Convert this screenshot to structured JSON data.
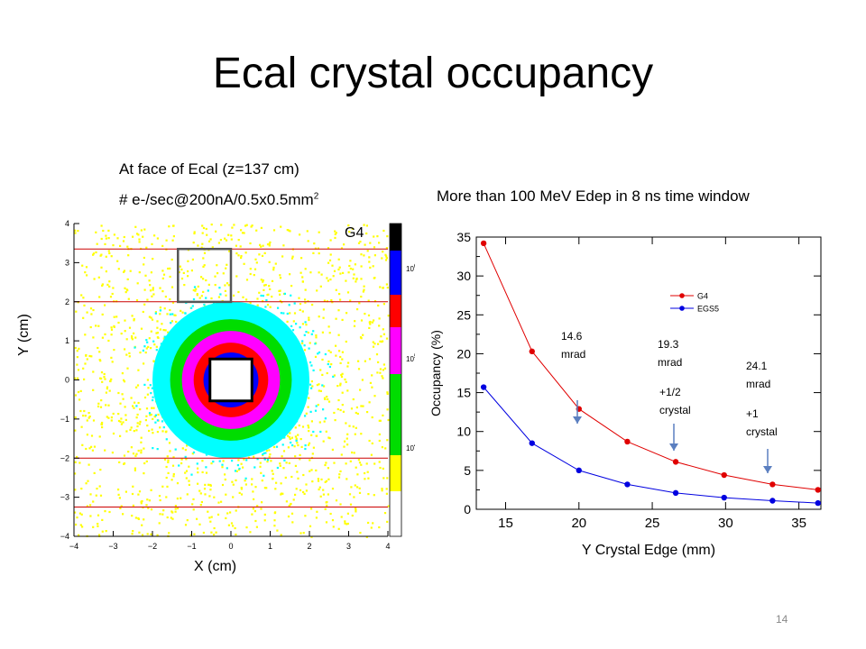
{
  "title": "Ecal crystal occupancy",
  "left_panel": {
    "caption": "At face of Ecal (z=137 cm)",
    "subcaption": "# e-/sec@200nA/0.5x0.5mm",
    "subcaption_sup": "2",
    "model_label": "G4",
    "xlabel": "X (cm)",
    "ylabel": "Y (cm)",
    "ticks": [
      "−4",
      "−3",
      "−2",
      "−1",
      "0",
      "1",
      "2",
      "3",
      "4"
    ],
    "tick_values": [
      -4,
      -3,
      -2,
      -1,
      0,
      1,
      2,
      3,
      4
    ],
    "colorbar_labels": [
      {
        "base": "10",
        "exp": "6"
      },
      {
        "base": "10",
        "exp": "5"
      },
      {
        "base": "10",
        "exp": "4"
      }
    ],
    "colors": {
      "black": "#000000",
      "blue": "#0000ff",
      "red": "#ff0000",
      "magenta": "#ff00ff",
      "green": "#00dd00",
      "cyan": "#00ffff",
      "yellow": "#ffff00",
      "white": "#ffffff",
      "lines": "#cc0000",
      "box": "#555555"
    }
  },
  "right_panel": {
    "caption": "More than 100 MeV Edep in 8 ns time window",
    "annotations": {
      "a1": "14.6\nmrad",
      "a2": "19.3\nmrad",
      "a3": "24.1\nmrad",
      "a4": "+1/2\ncrystal",
      "a5": "+1\ncrystal"
    }
  },
  "chart_data": {
    "type": "line",
    "xlabel": "Y Crystal Edge (mm)",
    "ylabel": "Occupancy (%)",
    "xlim": [
      13,
      36.5
    ],
    "ylim": [
      0,
      35
    ],
    "xticks": [
      15,
      20,
      25,
      30,
      35
    ],
    "yticks": [
      0,
      5,
      10,
      15,
      20,
      25,
      30,
      35
    ],
    "x": [
      13.5,
      16.8,
      20.0,
      23.3,
      26.6,
      29.9,
      33.2,
      36.3
    ],
    "series": [
      {
        "name": "G4",
        "color": "#e00000",
        "values": [
          34.2,
          20.3,
          12.9,
          8.7,
          6.1,
          4.4,
          3.2,
          2.5
        ]
      },
      {
        "name": "EGS5",
        "color": "#0000e0",
        "values": [
          15.7,
          8.5,
          5.0,
          3.2,
          2.1,
          1.5,
          1.1,
          0.8
        ]
      }
    ],
    "legend_position": "top-right"
  },
  "page_number": "14"
}
